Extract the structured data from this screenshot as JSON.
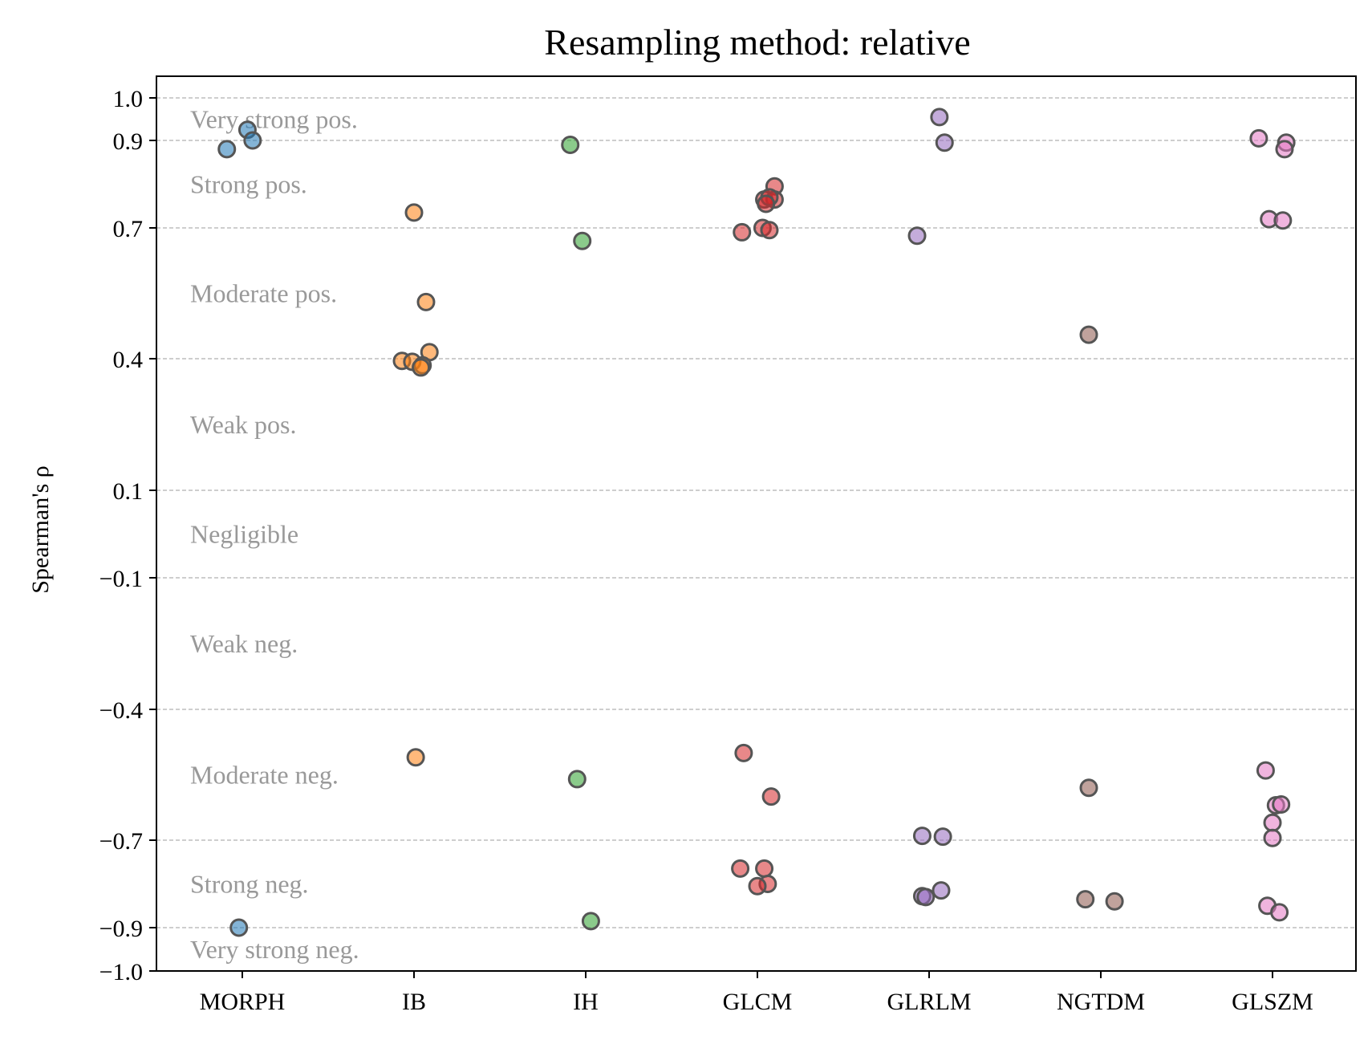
{
  "chart_data": {
    "type": "scatter",
    "title": "Resampling method: relative",
    "xlabel": "",
    "ylabel": "Spearman's ρ",
    "ylim": [
      -1.0,
      1.0
    ],
    "yticks": [
      {
        "value": 1.0,
        "label": "1.0"
      },
      {
        "value": 0.9,
        "label": "0.9"
      },
      {
        "value": 0.7,
        "label": "0.7"
      },
      {
        "value": 0.4,
        "label": "0.4"
      },
      {
        "value": 0.1,
        "label": "0.1"
      },
      {
        "value": -0.1,
        "label": "−0.1"
      },
      {
        "value": -0.4,
        "label": "−0.4"
      },
      {
        "value": -0.7,
        "label": "−0.7"
      },
      {
        "value": -0.9,
        "label": "−0.9"
      },
      {
        "value": -1.0,
        "label": "−1.0"
      }
    ],
    "grid_lines": [
      1.0,
      0.9,
      0.7,
      0.4,
      0.1,
      -0.1,
      -0.4,
      -0.7,
      -0.9
    ],
    "bands": [
      {
        "label": "Very strong pos.",
        "y": 0.95
      },
      {
        "label": "Strong pos.",
        "y": 0.8
      },
      {
        "label": "Moderate pos.",
        "y": 0.55
      },
      {
        "label": "Weak pos.",
        "y": 0.25
      },
      {
        "label": "Negligible",
        "y": 0.0
      },
      {
        "label": "Weak neg.",
        "y": -0.25
      },
      {
        "label": "Moderate neg.",
        "y": -0.55
      },
      {
        "label": "Strong neg.",
        "y": -0.8
      },
      {
        "label": "Very strong neg.",
        "y": -0.95
      }
    ],
    "categories": [
      "MORPH",
      "IB",
      "IH",
      "GLCM",
      "GLRLM",
      "NGTDM",
      "GLSZM"
    ],
    "series": [
      {
        "category": "MORPH",
        "color": "#1f77b4",
        "points": [
          [
            -0.09,
            0.88
          ],
          [
            0.03,
            0.925
          ],
          [
            0.06,
            0.9
          ],
          [
            -0.02,
            -0.9
          ]
        ]
      },
      {
        "category": "IB",
        "color": "#ff7f0e",
        "points": [
          [
            0.0,
            0.735
          ],
          [
            0.07,
            0.53
          ],
          [
            0.09,
            0.415
          ],
          [
            -0.07,
            0.395
          ],
          [
            -0.01,
            0.393
          ],
          [
            0.05,
            0.385
          ],
          [
            0.04,
            0.38
          ],
          [
            0.01,
            -0.51
          ]
        ]
      },
      {
        "category": "IH",
        "color": "#2ca02c",
        "points": [
          [
            -0.09,
            0.89
          ],
          [
            -0.02,
            0.67
          ],
          [
            -0.05,
            -0.56
          ],
          [
            0.03,
            -0.885
          ]
        ]
      },
      {
        "category": "GLCM",
        "color": "#d62728",
        "points": [
          [
            0.1,
            0.795
          ],
          [
            0.04,
            0.765
          ],
          [
            0.1,
            0.765
          ],
          [
            0.07,
            0.77
          ],
          [
            0.05,
            0.755
          ],
          [
            0.03,
            0.7
          ],
          [
            0.07,
            0.695
          ],
          [
            -0.09,
            0.69
          ],
          [
            -0.08,
            -0.5
          ],
          [
            0.08,
            -0.6
          ],
          [
            -0.1,
            -0.765
          ],
          [
            0.04,
            -0.765
          ],
          [
            0.06,
            -0.8
          ],
          [
            0.0,
            -0.805
          ]
        ]
      },
      {
        "category": "GLRLM",
        "color": "#9467bd",
        "points": [
          [
            0.06,
            0.955
          ],
          [
            0.09,
            0.895
          ],
          [
            -0.07,
            0.682
          ],
          [
            -0.04,
            -0.69
          ],
          [
            0.08,
            -0.692
          ],
          [
            -0.04,
            -0.828
          ],
          [
            -0.02,
            -0.83
          ],
          [
            0.07,
            -0.815
          ]
        ]
      },
      {
        "category": "NGTDM",
        "color": "#8c564b",
        "points": [
          [
            -0.07,
            0.455
          ],
          [
            -0.07,
            -0.58
          ],
          [
            -0.09,
            -0.835
          ],
          [
            0.08,
            -0.84
          ]
        ]
      },
      {
        "category": "GLSZM",
        "color": "#e377c2",
        "points": [
          [
            -0.08,
            0.905
          ],
          [
            0.08,
            0.895
          ],
          [
            0.07,
            0.88
          ],
          [
            -0.02,
            0.72
          ],
          [
            0.06,
            0.717
          ],
          [
            -0.04,
            -0.54
          ],
          [
            0.02,
            -0.62
          ],
          [
            0.05,
            -0.618
          ],
          [
            0.0,
            -0.66
          ],
          [
            0.0,
            -0.695
          ],
          [
            -0.03,
            -0.85
          ],
          [
            0.04,
            -0.865
          ]
        ]
      }
    ]
  }
}
